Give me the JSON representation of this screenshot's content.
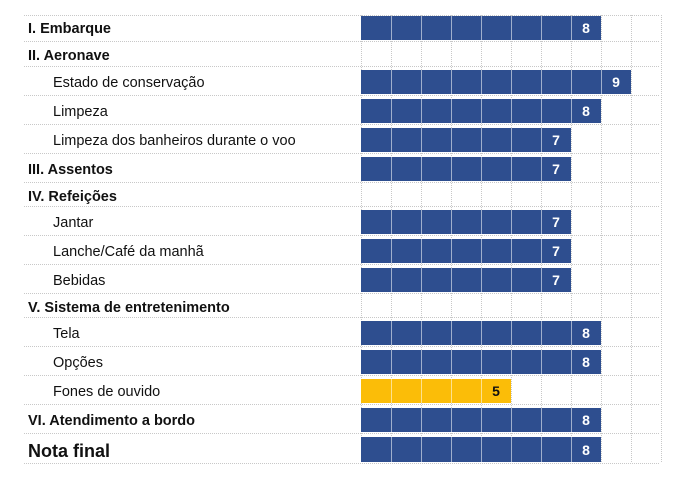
{
  "chart_data": {
    "type": "bar",
    "orientation": "horizontal",
    "xlim": [
      0,
      10
    ],
    "grid": true,
    "rows": [
      {
        "label": "I. Embarque",
        "kind": "section",
        "value": 8
      },
      {
        "label": "II. Aeronave",
        "kind": "section",
        "value": null
      },
      {
        "label": "Estado de conservação",
        "kind": "sub",
        "value": 9
      },
      {
        "label": "Limpeza",
        "kind": "sub",
        "value": 8
      },
      {
        "label": "Limpeza dos banheiros durante o voo",
        "kind": "sub",
        "value": 7
      },
      {
        "label": "III. Assentos",
        "kind": "section",
        "value": 7
      },
      {
        "label": "IV. Refeições",
        "kind": "section",
        "value": null
      },
      {
        "label": "Jantar",
        "kind": "sub",
        "value": 7
      },
      {
        "label": "Lanche/Café da manhã",
        "kind": "sub",
        "value": 7
      },
      {
        "label": "Bebidas",
        "kind": "sub",
        "value": 7
      },
      {
        "label": "V. Sistema de entretenimento",
        "kind": "section",
        "value": null
      },
      {
        "label": "Tela",
        "kind": "sub",
        "value": 8
      },
      {
        "label": "Opções",
        "kind": "sub",
        "value": 8
      },
      {
        "label": "Fones de ouvido",
        "kind": "sub",
        "value": 5
      },
      {
        "label": "VI. Atendimento a bordo",
        "kind": "section",
        "value": 8
      },
      {
        "label": "Nota final",
        "kind": "final",
        "value": 8
      }
    ],
    "colors": {
      "high": "#2e4e8f",
      "low": "#fbbd08",
      "grid": "#c8c8c8"
    },
    "low_threshold": 6
  }
}
